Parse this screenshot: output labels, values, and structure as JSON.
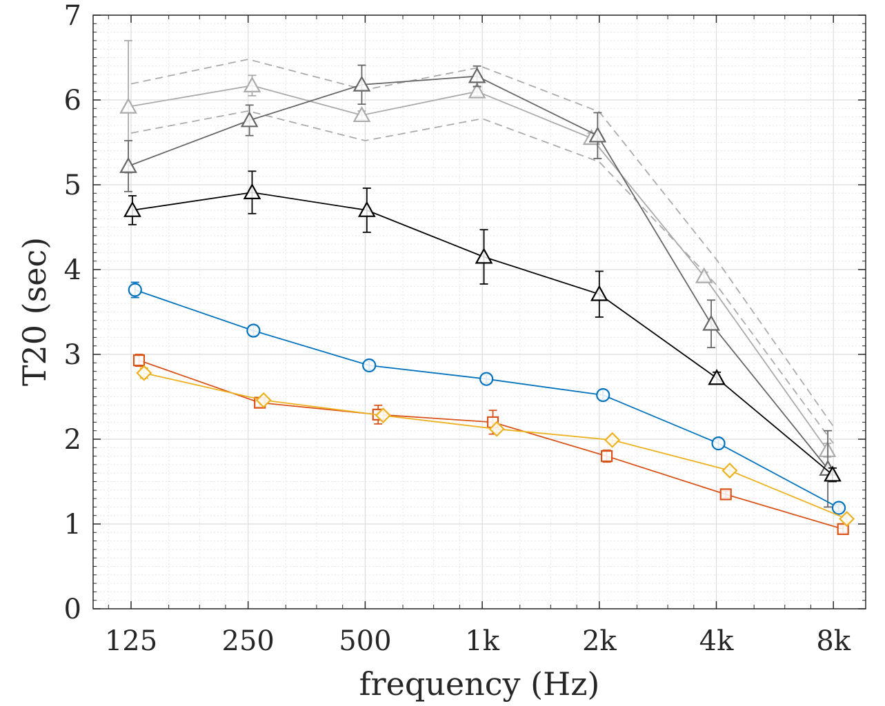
{
  "chart_data": {
    "type": "line",
    "title": "",
    "xlabel": "frequency (Hz)",
    "ylabel": "T20 (sec)",
    "x_scale": "log2",
    "x_ticks": [
      125,
      250,
      500,
      1000,
      2000,
      4000,
      8000
    ],
    "x_tick_labels": [
      "125",
      "250",
      "500",
      "1k",
      "2k",
      "4k",
      "8k"
    ],
    "y_ticks": [
      0,
      1,
      2,
      3,
      4,
      5,
      6,
      7
    ],
    "y_tick_labels": [
      "0",
      "1",
      "2",
      "3",
      "4",
      "5",
      "6",
      "7"
    ],
    "ylim": [
      0,
      7
    ],
    "grid": true,
    "minor_grid": true,
    "series": [
      {
        "color": "#AAAAAA",
        "line": "dashed",
        "marker": "none",
        "x": [
          125,
          250,
          500,
          1000,
          2000,
          4000,
          8000
        ],
        "values": [
          6.19,
          6.48,
          6.12,
          6.39,
          5.86,
          4.12,
          2.15
        ]
      },
      {
        "color": "#AAAAAA",
        "line": "dashed",
        "marker": "none",
        "x": [
          125,
          250,
          500,
          1000,
          2000,
          4000,
          8000
        ],
        "values": [
          5.61,
          5.87,
          5.52,
          5.78,
          5.27,
          3.82,
          1.95
        ]
      },
      {
        "color": "#AAAAAA",
        "line": "solid",
        "marker": "triangle",
        "x": [
          123,
          256,
          490,
          970,
          1910,
          3720,
          7720
        ],
        "values": [
          5.92,
          6.17,
          5.82,
          6.1,
          5.55,
          3.92,
          1.87
        ],
        "err": [
          0.78,
          0.12,
          0.05,
          0.05,
          0.06,
          0.05,
          0.08
        ]
      },
      {
        "color": "#666666",
        "line": "solid",
        "marker": "triangle",
        "x": [
          123,
          252,
          490,
          970,
          1980,
          3880,
          7740
        ],
        "values": [
          5.22,
          5.76,
          6.18,
          6.28,
          5.58,
          3.36,
          1.65
        ],
        "err": [
          0.3,
          0.18,
          0.23,
          0.12,
          0.27,
          0.28,
          0.45
        ]
      },
      {
        "color": "#000000",
        "line": "solid",
        "marker": "triangle",
        "x": [
          126,
          256,
          505,
          1010,
          2000,
          4010,
          7960
        ],
        "values": [
          4.7,
          4.91,
          4.7,
          4.15,
          3.71,
          2.72,
          1.58
        ],
        "err": [
          0.17,
          0.25,
          0.26,
          0.32,
          0.27,
          0.07,
          0.08
        ]
      },
      {
        "color": "#0072BD",
        "line": "solid",
        "marker": "circle",
        "x": [
          128,
          258,
          512,
          1025,
          2045,
          4050,
          8260
        ],
        "values": [
          3.76,
          3.28,
          2.87,
          2.71,
          2.52,
          1.95,
          1.19
        ],
        "err": [
          0.09,
          0.06,
          0.05,
          0.05,
          0.06,
          0.05,
          0.04
        ]
      },
      {
        "color": "#D95319",
        "line": "solid",
        "marker": "square",
        "x": [
          131,
          268,
          540,
          1065,
          2090,
          4230,
          8470
        ],
        "values": [
          2.93,
          2.43,
          2.29,
          2.2,
          1.8,
          1.35,
          0.94
        ],
        "err": [
          0.07,
          0.05,
          0.11,
          0.14,
          0.07,
          0.04,
          0.04
        ]
      },
      {
        "color": "#EDB120",
        "line": "solid",
        "marker": "diamond",
        "x": [
          135,
          274,
          556,
          1090,
          2160,
          4330,
          8660
        ],
        "values": [
          2.78,
          2.46,
          2.28,
          2.12,
          1.99,
          1.63,
          1.06
        ],
        "err": [
          0.06,
          0.04,
          0.04,
          0.04,
          0.04,
          0.04,
          0.04
        ]
      }
    ]
  }
}
